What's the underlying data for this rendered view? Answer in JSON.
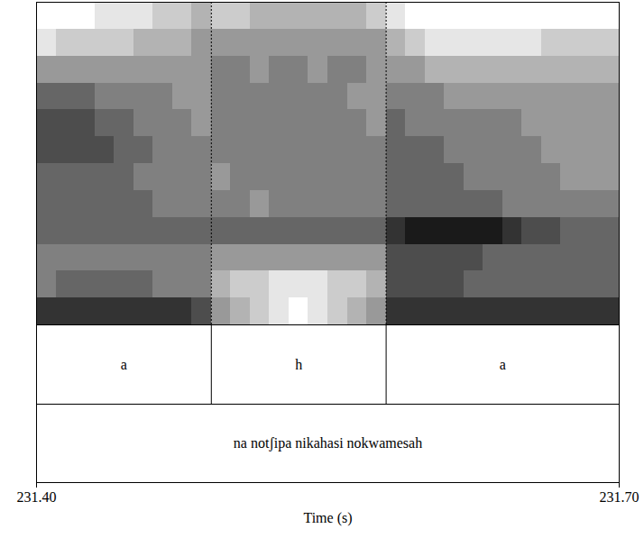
{
  "chart_data": {
    "type": "spectrogram",
    "x_label": "Time (s)",
    "xlim": [
      231.4,
      231.7
    ],
    "xticks": [
      231.4,
      231.7
    ],
    "tick_labels": "x",
    "color": "#1a1a1a",
    "heatmap": {
      "x": [
        231.4,
        231.41,
        231.42,
        231.43,
        231.44,
        231.45,
        231.46,
        231.47,
        231.48,
        231.49,
        231.5,
        231.51,
        231.52,
        231.53,
        231.54,
        231.55,
        231.56,
        231.57,
        231.58,
        231.59,
        231.6,
        231.61,
        231.62,
        231.63,
        231.64,
        231.65,
        231.66,
        231.67,
        231.68,
        231.69,
        231.7
      ],
      "zlim": [
        0,
        9
      ],
      "z": [
        [
          0,
          0,
          0,
          1,
          1,
          1,
          2,
          2,
          3,
          2,
          2,
          3,
          3,
          3,
          3,
          3,
          3,
          2,
          1,
          0,
          0,
          0,
          0,
          0,
          0,
          0,
          0,
          0,
          0,
          0
        ],
        [
          1,
          2,
          2,
          2,
          2,
          3,
          3,
          3,
          4,
          4,
          4,
          4,
          4,
          4,
          4,
          4,
          4,
          4,
          3,
          2,
          1,
          1,
          1,
          1,
          1,
          1,
          2,
          2,
          2,
          2
        ],
        [
          4,
          4,
          4,
          4,
          4,
          4,
          4,
          4,
          4,
          5,
          5,
          4,
          5,
          5,
          4,
          5,
          5,
          4,
          4,
          4,
          3,
          3,
          3,
          3,
          3,
          3,
          3,
          3,
          3,
          3
        ],
        [
          6,
          6,
          6,
          5,
          5,
          5,
          5,
          4,
          4,
          5,
          5,
          5,
          5,
          5,
          5,
          5,
          4,
          4,
          5,
          5,
          5,
          4,
          4,
          4,
          4,
          4,
          4,
          4,
          4,
          4
        ],
        [
          7,
          7,
          7,
          6,
          6,
          5,
          5,
          5,
          4,
          5,
          5,
          5,
          5,
          5,
          5,
          5,
          5,
          4,
          6,
          5,
          5,
          5,
          5,
          5,
          5,
          4,
          4,
          4,
          4,
          4
        ],
        [
          7,
          7,
          7,
          7,
          6,
          6,
          5,
          5,
          5,
          5,
          5,
          5,
          5,
          5,
          5,
          5,
          5,
          5,
          6,
          6,
          6,
          5,
          5,
          5,
          5,
          5,
          4,
          4,
          4,
          4
        ],
        [
          6,
          6,
          6,
          6,
          6,
          5,
          5,
          5,
          5,
          4,
          5,
          5,
          5,
          5,
          5,
          5,
          5,
          5,
          6,
          6,
          6,
          6,
          5,
          5,
          5,
          5,
          5,
          4,
          4,
          4
        ],
        [
          6,
          6,
          6,
          6,
          6,
          6,
          5,
          5,
          5,
          5,
          5,
          4,
          5,
          5,
          5,
          5,
          5,
          5,
          6,
          6,
          6,
          6,
          6,
          6,
          5,
          5,
          5,
          5,
          5,
          5
        ],
        [
          6,
          6,
          6,
          6,
          6,
          6,
          6,
          6,
          6,
          6,
          6,
          6,
          6,
          6,
          6,
          6,
          6,
          6,
          8,
          9,
          9,
          9,
          9,
          9,
          8,
          7,
          7,
          6,
          6,
          6
        ],
        [
          5,
          5,
          5,
          5,
          5,
          5,
          5,
          5,
          5,
          4,
          4,
          4,
          4,
          4,
          4,
          4,
          4,
          4,
          7,
          7,
          7,
          7,
          7,
          6,
          6,
          6,
          6,
          6,
          6,
          6
        ],
        [
          5,
          6,
          6,
          6,
          6,
          6,
          5,
          5,
          5,
          3,
          2,
          2,
          1,
          1,
          1,
          2,
          2,
          3,
          7,
          7,
          7,
          7,
          6,
          6,
          6,
          6,
          6,
          6,
          6,
          6
        ],
        [
          8,
          8,
          8,
          8,
          8,
          8,
          8,
          8,
          7,
          4,
          3,
          2,
          1,
          0,
          1,
          2,
          3,
          4,
          8,
          8,
          8,
          8,
          8,
          8,
          8,
          8,
          8,
          8,
          8,
          8
        ]
      ]
    },
    "tiers": [
      {
        "intervals": [
          {
            "start": 231.4,
            "end": 231.49,
            "text": "a"
          },
          {
            "start": 231.49,
            "end": 231.58,
            "text": "h"
          },
          {
            "start": 231.58,
            "end": 231.7,
            "text": "a"
          }
        ]
      },
      {
        "intervals": [
          {
            "start": 231.4,
            "end": 231.7,
            "text": "na notʃipa nikahasi nokwamesah"
          }
        ]
      }
    ]
  }
}
